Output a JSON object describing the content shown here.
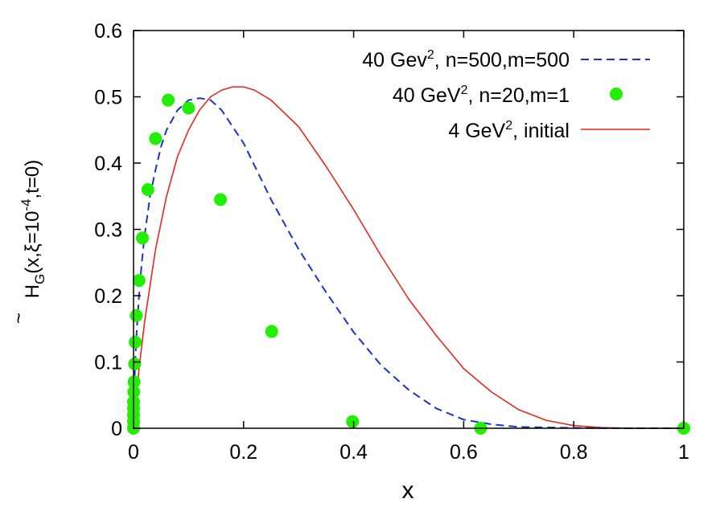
{
  "chart_data": {
    "type": "line",
    "xlabel": "x",
    "ylabel": {
      "main": "H",
      "accent": "~",
      "sub": "G",
      "args_a": "(x,ξ=10",
      "exp": "-4",
      "args_b": ",t=0)"
    },
    "xlim": [
      0,
      1
    ],
    "ylim": [
      0,
      0.6
    ],
    "x_ticks": [
      0,
      0.2,
      0.4,
      0.6,
      0.8,
      1
    ],
    "x_tick_labels": [
      "0",
      "0.2",
      "0.4",
      "0.6",
      "0.8",
      "1"
    ],
    "y_ticks": [
      0,
      0.1,
      0.2,
      0.3,
      0.4,
      0.5,
      0.6
    ],
    "y_tick_labels": [
      "0",
      "0.1",
      "0.2",
      "0.3",
      "0.4",
      "0.5",
      "0.6"
    ],
    "grid": false,
    "legend_position": "top-right",
    "series": [
      {
        "label_pre": "40 Gev",
        "label_sup": "2",
        "label_post": ", n=500,m=500",
        "style": "dashed",
        "color": "#1a33cc",
        "x": [
          0.0,
          0.001,
          0.003,
          0.006,
          0.01,
          0.015,
          0.02,
          0.03,
          0.04,
          0.05,
          0.06,
          0.08,
          0.1,
          0.12,
          0.14,
          0.16,
          0.18,
          0.2,
          0.25,
          0.3,
          0.35,
          0.4,
          0.45,
          0.5,
          0.55,
          0.6,
          0.65,
          0.7,
          0.8,
          0.9,
          1.0
        ],
        "y": [
          0.0,
          0.05,
          0.1,
          0.15,
          0.2,
          0.25,
          0.29,
          0.35,
          0.39,
          0.425,
          0.45,
          0.48,
          0.495,
          0.498,
          0.495,
          0.48,
          0.455,
          0.43,
          0.345,
          0.27,
          0.205,
          0.145,
          0.095,
          0.058,
          0.03,
          0.013,
          0.006,
          0.002,
          0.0005,
          0.0,
          0.0
        ]
      },
      {
        "label_pre": "40 GeV",
        "label_sup": "2",
        "label_post": ", n=20,m=1",
        "style": "points",
        "color": "#22ee00",
        "x": [
          0.0,
          0.0,
          0.0,
          0.0,
          0.0,
          0.0005,
          0.001,
          0.002,
          0.003,
          0.005,
          0.01,
          0.016,
          0.026,
          0.04,
          0.063,
          0.1,
          0.158,
          0.251,
          0.398,
          0.631,
          1.0
        ],
        "y": [
          0.0,
          0.01,
          0.02,
          0.03,
          0.04,
          0.055,
          0.07,
          0.097,
          0.13,
          0.17,
          0.223,
          0.287,
          0.36,
          0.437,
          0.495,
          0.483,
          0.345,
          0.146,
          0.01,
          0.0,
          0.0
        ]
      },
      {
        "label_pre": "4 GeV",
        "label_sup": "2",
        "label_post": ", initial",
        "style": "solid",
        "color": "#e8261f",
        "x": [
          0.0,
          0.01,
          0.02,
          0.04,
          0.06,
          0.08,
          0.1,
          0.12,
          0.14,
          0.16,
          0.18,
          0.2,
          0.22,
          0.25,
          0.3,
          0.35,
          0.4,
          0.45,
          0.5,
          0.55,
          0.6,
          0.65,
          0.7,
          0.75,
          0.8,
          0.85,
          0.9,
          1.0
        ],
        "y": [
          0.0,
          0.09,
          0.16,
          0.27,
          0.35,
          0.41,
          0.45,
          0.48,
          0.5,
          0.51,
          0.515,
          0.515,
          0.51,
          0.495,
          0.455,
          0.395,
          0.33,
          0.26,
          0.195,
          0.14,
          0.09,
          0.055,
          0.028,
          0.012,
          0.004,
          0.001,
          0.0,
          0.0
        ]
      }
    ]
  }
}
